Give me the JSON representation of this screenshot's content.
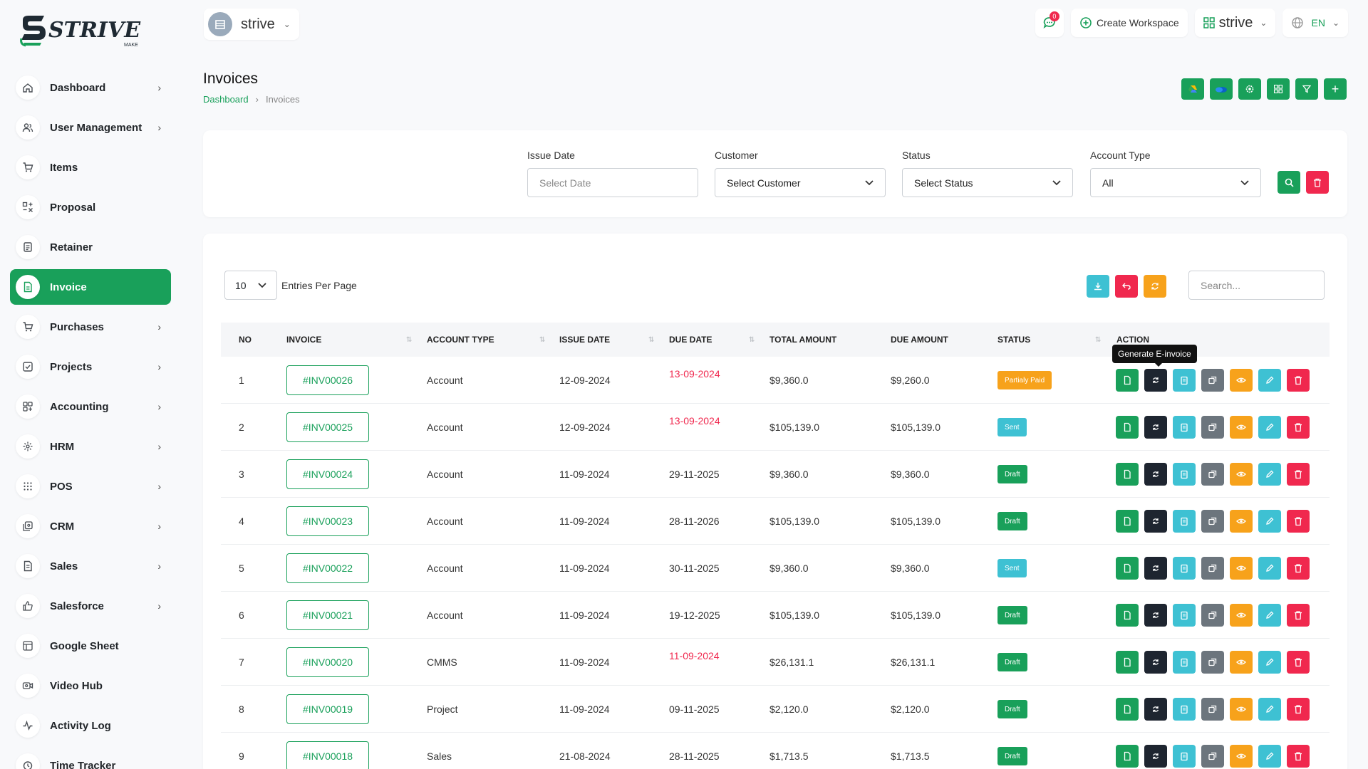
{
  "brand": {
    "name": "STRIVE",
    "tagline": "MAKE"
  },
  "sidebar": {
    "items": [
      {
        "label": "Dashboard",
        "icon": "home-icon",
        "chevron": true
      },
      {
        "label": "User Management",
        "icon": "users-icon",
        "chevron": true
      },
      {
        "label": "Items",
        "icon": "cart-icon",
        "chevron": false
      },
      {
        "label": "Proposal",
        "icon": "proposal-icon",
        "chevron": false
      },
      {
        "label": "Retainer",
        "icon": "retainer-icon",
        "chevron": false
      },
      {
        "label": "Invoice",
        "icon": "invoice-icon",
        "chevron": false,
        "active": true
      },
      {
        "label": "Purchases",
        "icon": "cart-icon",
        "chevron": true
      },
      {
        "label": "Projects",
        "icon": "checkbox-icon",
        "chevron": true
      },
      {
        "label": "Accounting",
        "icon": "grid-icon",
        "chevron": true
      },
      {
        "label": "HRM",
        "icon": "hrm-icon",
        "chevron": true
      },
      {
        "label": "POS",
        "icon": "dots-grid-icon",
        "chevron": true
      },
      {
        "label": "CRM",
        "icon": "crm-icon",
        "chevron": true
      },
      {
        "label": "Sales",
        "icon": "file-icon",
        "chevron": true
      },
      {
        "label": "Salesforce",
        "icon": "thumbs-up-icon",
        "chevron": true
      },
      {
        "label": "Google Sheet",
        "icon": "table-icon",
        "chevron": false
      },
      {
        "label": "Video Hub",
        "icon": "video-icon",
        "chevron": false
      },
      {
        "label": "Activity Log",
        "icon": "activity-icon",
        "chevron": false
      },
      {
        "label": "Time Tracker",
        "icon": "clock-icon",
        "chevron": false
      }
    ]
  },
  "header": {
    "workspace": "strive",
    "chat_count": "0",
    "create_workspace": "Create Workspace",
    "workspace_menu": "strive",
    "language": "EN"
  },
  "page": {
    "title": "Invoices",
    "breadcrumb": [
      "Dashboard",
      "Invoices"
    ]
  },
  "filters": {
    "issue_date": {
      "label": "Issue Date",
      "placeholder": "Select Date"
    },
    "customer": {
      "label": "Customer",
      "value": "Select Customer"
    },
    "status": {
      "label": "Status",
      "value": "Select Status"
    },
    "account_type": {
      "label": "Account Type",
      "value": "All"
    }
  },
  "table": {
    "entries_per_page": "10",
    "entries_label": "Entries Per Page",
    "search_placeholder": "Search...",
    "columns": [
      "NO",
      "INVOICE",
      "ACCOUNT TYPE",
      "ISSUE DATE",
      "DUE DATE",
      "TOTAL AMOUNT",
      "DUE AMOUNT",
      "STATUS",
      "ACTION"
    ],
    "tooltip": "Generate E-invoice",
    "rows": [
      {
        "no": "1",
        "invoice": "#INV00026",
        "account_type": "Account",
        "issue_date": "12-09-2024",
        "due_date": "13-09-2024",
        "overdue": true,
        "total": "$9,360.0",
        "due": "$9,260.0",
        "status": "Partialy Paid",
        "status_color": "#f7a21b"
      },
      {
        "no": "2",
        "invoice": "#INV00025",
        "account_type": "Account",
        "issue_date": "12-09-2024",
        "due_date": "13-09-2024",
        "overdue": true,
        "total": "$105,139.0",
        "due": "$105,139.0",
        "status": "Sent",
        "status_color": "#3ec1d3"
      },
      {
        "no": "3",
        "invoice": "#INV00024",
        "account_type": "Account",
        "issue_date": "11-09-2024",
        "due_date": "29-11-2025",
        "overdue": false,
        "total": "$9,360.0",
        "due": "$9,360.0",
        "status": "Draft",
        "status_color": "#19a05a"
      },
      {
        "no": "4",
        "invoice": "#INV00023",
        "account_type": "Account",
        "issue_date": "11-09-2024",
        "due_date": "28-11-2026",
        "overdue": false,
        "total": "$105,139.0",
        "due": "$105,139.0",
        "status": "Draft",
        "status_color": "#19a05a"
      },
      {
        "no": "5",
        "invoice": "#INV00022",
        "account_type": "Account",
        "issue_date": "11-09-2024",
        "due_date": "30-11-2025",
        "overdue": false,
        "total": "$9,360.0",
        "due": "$9,360.0",
        "status": "Sent",
        "status_color": "#3ec1d3"
      },
      {
        "no": "6",
        "invoice": "#INV00021",
        "account_type": "Account",
        "issue_date": "11-09-2024",
        "due_date": "19-12-2025",
        "overdue": false,
        "total": "$105,139.0",
        "due": "$105,139.0",
        "status": "Draft",
        "status_color": "#19a05a"
      },
      {
        "no": "7",
        "invoice": "#INV00020",
        "account_type": "CMMS",
        "issue_date": "11-09-2024",
        "due_date": "11-09-2024",
        "overdue": true,
        "total": "$26,131.1",
        "due": "$26,131.1",
        "status": "Draft",
        "status_color": "#19a05a"
      },
      {
        "no": "8",
        "invoice": "#INV00019",
        "account_type": "Project",
        "issue_date": "11-09-2024",
        "due_date": "09-11-2025",
        "overdue": false,
        "total": "$2,120.0",
        "due": "$2,120.0",
        "status": "Draft",
        "status_color": "#19a05a"
      },
      {
        "no": "9",
        "invoice": "#INV00018",
        "account_type": "Sales",
        "issue_date": "21-08-2024",
        "due_date": "28-11-2025",
        "overdue": false,
        "total": "$1,713.5",
        "due": "$1,713.5",
        "status": "Draft",
        "status_color": "#19a05a"
      }
    ]
  },
  "colors": {
    "primary": "#19a05a",
    "danger": "#f0284e",
    "info": "#3ec1d3",
    "warning": "#f7a21b",
    "dark": "#1e2530",
    "secondary": "#6c757d"
  }
}
